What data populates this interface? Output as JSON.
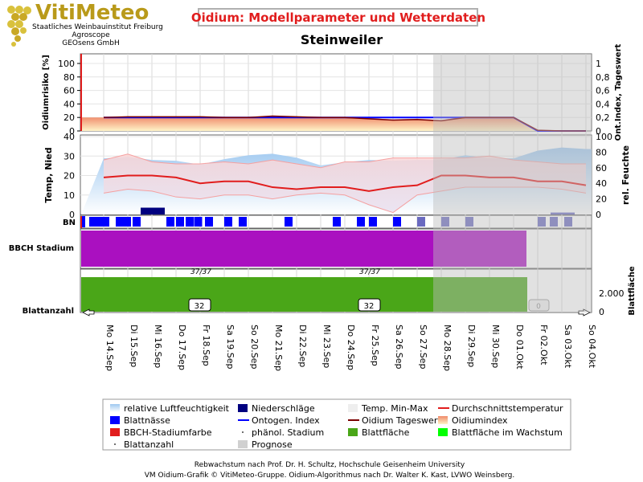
{
  "logo": {
    "name": "VitiMeteo",
    "sub1": "Staatliches Weinbauinstitut Freiburg",
    "sub2": "Agroscope",
    "sub3": "GEOsens GmbH"
  },
  "header": {
    "title": "Oidium: Modellparameter und Wetterdaten",
    "station": "Steinweiler"
  },
  "colors": {
    "title_red": "#e11d1d",
    "precip": "#00007f",
    "leafwet": "#0000ff",
    "ontogen": "#0000ff",
    "oidium_daily": "#7a0000",
    "temp_mean": "#e11d1d",
    "temp_range": "#f5a0a0",
    "humidity": "#9ec8f0",
    "bbch": "#aa10c0",
    "leaf_area": "#4aa618",
    "leaf_area_growth": "#00ff00",
    "forecast_shade": "#d0d0d0"
  },
  "chart_data": {
    "type": "line",
    "dates": [
      "Mo 14.Sep",
      "Di 15.Sep",
      "Mi 16.Sep",
      "Do 17.Sep",
      "Fr 18.Sep",
      "Sa 19.Sep",
      "So 20.Sep",
      "Mo 21.Sep",
      "Di 22.Sep",
      "Mi 23.Sep",
      "Do 24.Sep",
      "Fr 25.Sep",
      "Sa 26.Sep",
      "So 27.Sep",
      "Mo 28.Sep",
      "Di 29.Sep",
      "Mi 30.Sep",
      "Do 01.Okt",
      "Fr 02.Okt",
      "Sa 03.Okt",
      "So 04.Okt"
    ],
    "forecast_from": "Mo 28.Sep",
    "panels": {
      "oidium": {
        "ylabel_left": "Oidiumrisiko [%]",
        "ylabel_right": "Ont.Index, Tageswert",
        "left_ticks": [
          "0",
          "20",
          "40",
          "60",
          "80",
          "100"
        ],
        "right_ticks": [
          "0",
          "0,2",
          "0,4",
          "0,6",
          "0,8",
          "1"
        ],
        "ylim_left": [
          0,
          100
        ],
        "ylim_right": [
          0,
          1
        ],
        "oidium_index": [
          20,
          21,
          21,
          20,
          20,
          19,
          19,
          21,
          20,
          19,
          19,
          19,
          17,
          18,
          16,
          21,
          21,
          20,
          1,
          0,
          0
        ],
        "oidium_daily": [
          20,
          21,
          21,
          21,
          21,
          20,
          20,
          22,
          21,
          20,
          20,
          18,
          16,
          17,
          15,
          20,
          20,
          20,
          1,
          0,
          0
        ],
        "ontogen_index": [
          0.2,
          0.2,
          0.2,
          0.2,
          0.2,
          0.2,
          0.2,
          0.2,
          0.2,
          0.2,
          0.2,
          0.2,
          0.2,
          0.2,
          0.2,
          0.2,
          0.2,
          0.2,
          0,
          0,
          0
        ]
      },
      "weather": {
        "ylabel_left": "Temp, Nied",
        "ylabel_right": "rel. Feuchte",
        "left_ticks": [
          "0",
          "10",
          "20",
          "30",
          "40"
        ],
        "right_ticks": [
          "0",
          "20",
          "40",
          "60",
          "80",
          "100"
        ],
        "ylim_left": [
          0,
          40
        ],
        "ylim_right": [
          0,
          100
        ],
        "humidity": [
          72,
          74,
          70,
          69,
          64,
          71,
          76,
          78,
          73,
          63,
          67,
          70,
          69,
          70,
          70,
          76,
          72,
          72,
          82,
          86,
          84
        ],
        "temp_min": [
          11,
          13,
          12,
          9,
          8,
          10,
          10,
          8,
          10,
          11,
          10,
          5,
          1,
          10,
          12,
          14,
          14,
          14,
          14,
          13,
          11
        ],
        "temp_max": [
          28,
          31,
          27,
          26,
          26,
          27,
          26,
          28,
          26,
          24,
          27,
          27,
          29,
          29,
          29,
          29,
          30,
          28,
          27,
          26,
          26
        ],
        "temp_mean": [
          19,
          20,
          20,
          19,
          16,
          17,
          17,
          14,
          13,
          14,
          14,
          12,
          14,
          15,
          20,
          20,
          19,
          19,
          17,
          17,
          15
        ],
        "precip": [
          0,
          0,
          3.5,
          0,
          0,
          0,
          0,
          0,
          0,
          0,
          0,
          0,
          0,
          0,
          0,
          0,
          0,
          0,
          0,
          1,
          0
        ]
      },
      "bn": {
        "label": "BN",
        "leaf_wetness": [
          0.4,
          0.5,
          0.9,
          0.7,
          0.8,
          1.5,
          1.8,
          2.2,
          3.6,
          4.0,
          4.4,
          4.75,
          5.2,
          6.0,
          6.6,
          8.5,
          10.5,
          11.5,
          12.0,
          13.0,
          14.0,
          15.0,
          16.0,
          19.0,
          19.5,
          20.1
        ]
      },
      "bbch": {
        "label": "BBCH Stadium",
        "stage_label_1": "37/37",
        "stage_label_2": "37/37"
      },
      "leaf": {
        "ylabel_left": "Blattanzahl",
        "ylabel_right": "Blattfläche",
        "right_ticks": [
          "0",
          "2.000"
        ],
        "leaf_count_1": "32",
        "leaf_count_2": "32",
        "leaf_count_forecast": "0"
      }
    }
  },
  "legend": {
    "items": [
      {
        "label": "relative Luftfeuchtigkeit",
        "swatch": "hum"
      },
      {
        "label": "Niederschläge",
        "swatch": "precip"
      },
      {
        "label": "Temp. Min-Max",
        "swatch": "minmax"
      },
      {
        "label": "Durchschnittstemperatur",
        "swatch": "tmean"
      },
      {
        "label": "Blattnässe",
        "swatch": "leafwet"
      },
      {
        "label": "Ontogen. Index",
        "swatch": "ontogen"
      },
      {
        "label": "Oidium Tageswert",
        "swatch": "daily"
      },
      {
        "label": "Oidiumindex",
        "swatch": "index"
      },
      {
        "label": "BBCH-Stadiumfarbe",
        "swatch": "bbch"
      },
      {
        "label": "phänol. Stadium",
        "swatch": "dot"
      },
      {
        "label": "Blattfläche",
        "swatch": "leafarea"
      },
      {
        "label": "Blattfläche im Wachstum",
        "swatch": "leafgrow"
      },
      {
        "label": "Blattanzahl",
        "swatch": "dot"
      },
      {
        "label": "Prognose",
        "swatch": "forecast"
      }
    ]
  },
  "footer": {
    "line1": "Rebwachstum nach Prof. Dr. H. Schultz, Hochschule Geisenheim University",
    "line2": "VM Oidium-Grafik © VitiMeteo-Gruppe. Oidium-Algorithmus nach Dr. Walter K. Kast, LVWO Weinsberg."
  }
}
